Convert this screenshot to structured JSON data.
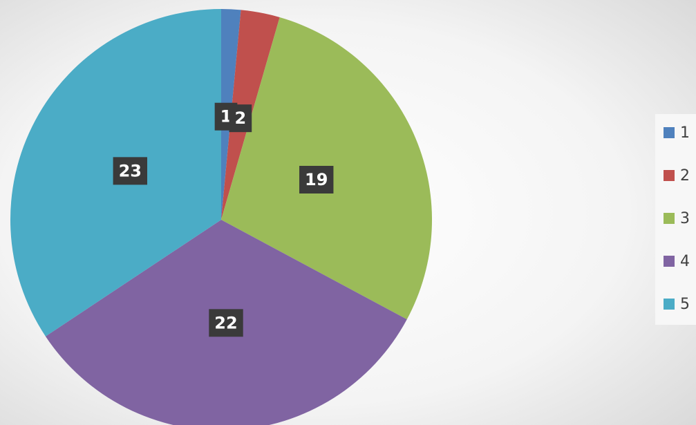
{
  "chart_data": {
    "type": "pie",
    "categories": [
      "1",
      "2",
      "3",
      "4",
      "5"
    ],
    "values": [
      1,
      2,
      19,
      22,
      23
    ],
    "colors": [
      "#4f81bd",
      "#c0504d",
      "#9bbb59",
      "#8064a2",
      "#4bacc6"
    ],
    "legend": "right",
    "data_labels": true
  }
}
